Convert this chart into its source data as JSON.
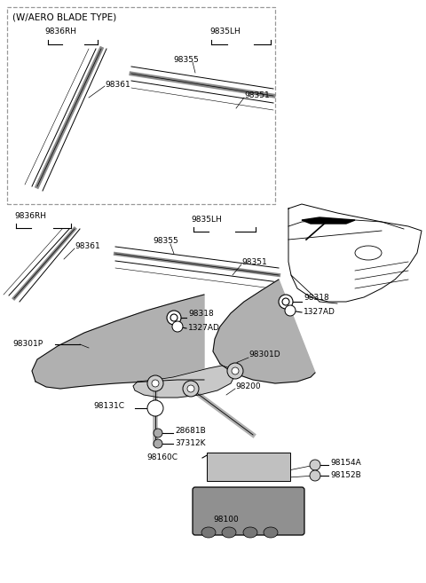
{
  "bg_color": "#ffffff",
  "gray_part": "#8a8a8a",
  "light_gray": "#b0b0b0",
  "dark_gray": "#555555",
  "line_color": "#000000",
  "figsize": [
    4.8,
    6.57
  ],
  "dpi": 100,
  "xlim": [
    0,
    480
  ],
  "ylim": [
    0,
    657
  ]
}
